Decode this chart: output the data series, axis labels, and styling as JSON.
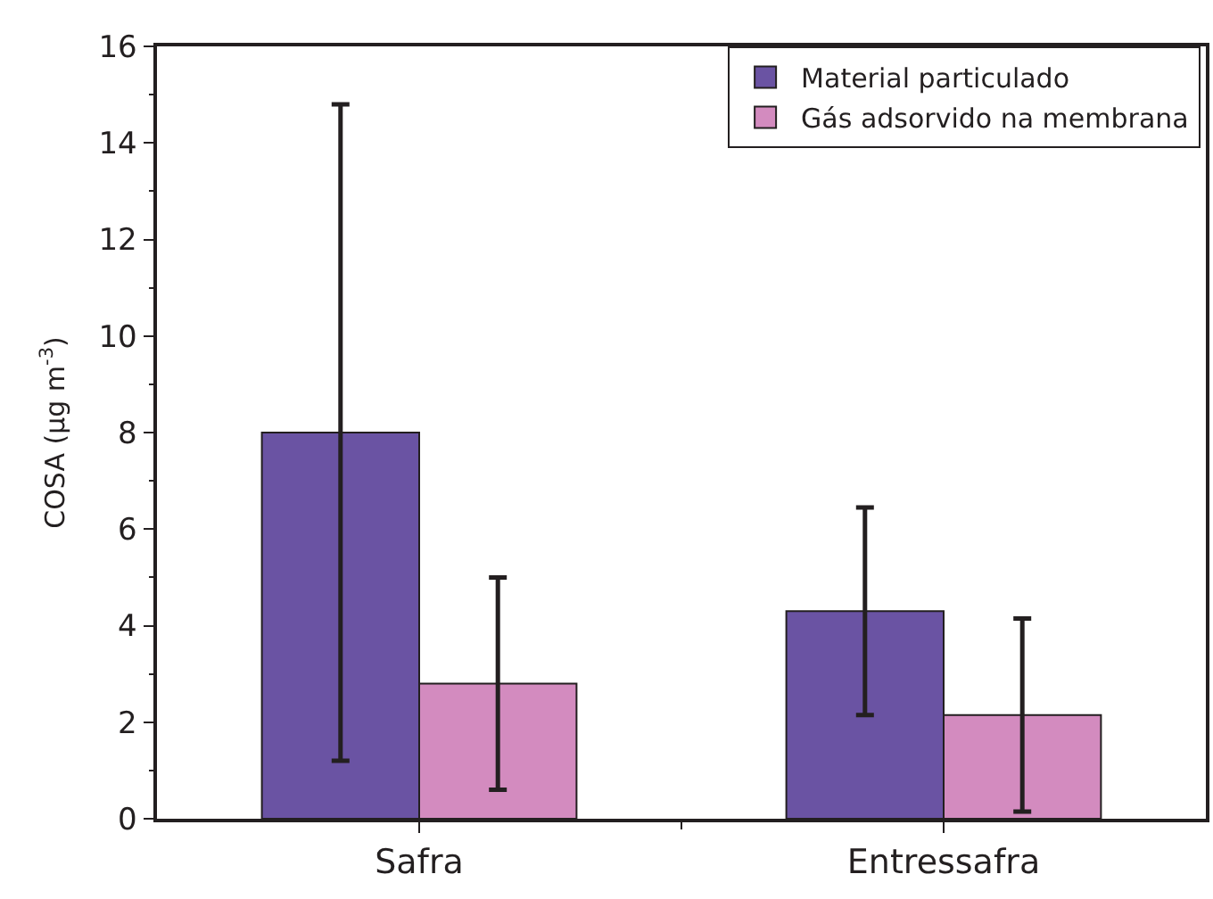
{
  "chart_data": {
    "type": "bar",
    "ylabel": "COSA (μg m$^{-3}$)",
    "categories": [
      "Safra",
      "Entressafra"
    ],
    "series": [
      {
        "name": "Material particulado",
        "color": "#6a53a3",
        "values": [
          8.0,
          4.3
        ],
        "errors": [
          6.8,
          2.15
        ]
      },
      {
        "name": "Gás adsorvido na membrana",
        "color": "#d38bbf",
        "values": [
          2.8,
          2.15
        ],
        "errors": [
          2.2,
          2.0
        ]
      }
    ],
    "ylim": [
      0,
      16
    ],
    "yticks": [
      0,
      2,
      4,
      6,
      8,
      10,
      12,
      14,
      16
    ],
    "legend": "top right"
  }
}
